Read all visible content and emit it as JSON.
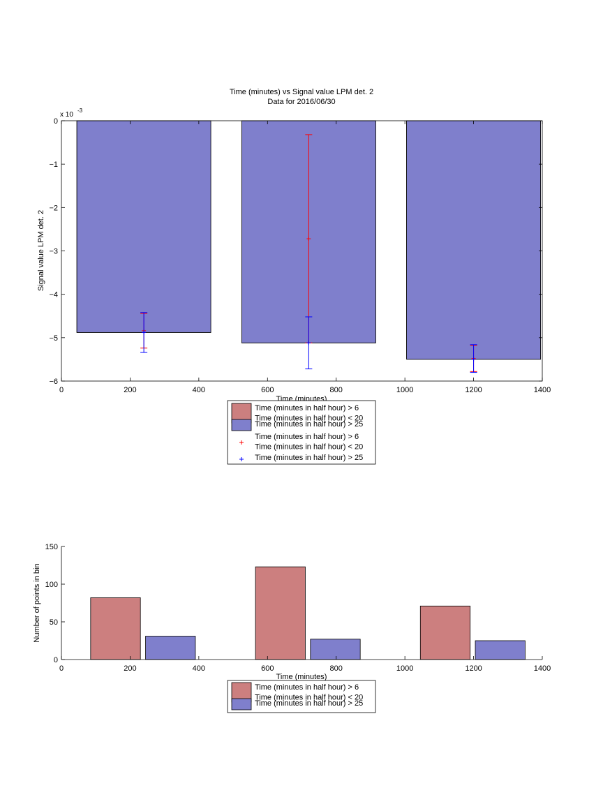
{
  "colors": {
    "red_bar": "#cc7f7f",
    "blue_bar": "#7f7fcc",
    "red_marker": "#ff0000",
    "blue_marker": "#0000ff",
    "axis": "#000000",
    "background": "#ffffff"
  },
  "chart_data": [
    {
      "type": "bar",
      "title": "Time (minutes) vs Signal value LPM det. 2",
      "subtitle": "Data for 2016/06/30",
      "xlabel": "Time (minutes)",
      "ylabel": "Signal value LPM det. 2",
      "y_exponent_label": "x 10",
      "y_exponent_power": "-3",
      "xlim": [
        0,
        1400
      ],
      "ylim": [
        -6,
        0
      ],
      "grid": false,
      "xticks": [
        "0",
        "200",
        "400",
        "600",
        "800",
        "1000",
        "1200",
        "1400"
      ],
      "yticks": [
        "0",
        "−1",
        "−2",
        "−3",
        "−4",
        "−5",
        "−6"
      ],
      "legend_position": "below",
      "legend": [
        {
          "kind": "patch",
          "color": "#cc7f7f",
          "lines": [
            "Time (minutes in half hour) > 6",
            "Time (minutes in half hour) < 20"
          ]
        },
        {
          "kind": "patch",
          "color": "#7f7fcc",
          "lines": [
            "Time (minutes in half hour) > 25"
          ]
        },
        {
          "kind": "marker",
          "color": "#ff0000",
          "lines": [
            "Time (minutes in half hour) > 6",
            "Time (minutes in half hour) < 20"
          ]
        },
        {
          "kind": "marker",
          "color": "#0000ff",
          "lines": [
            "Time (minutes in half hour) > 25"
          ]
        }
      ],
      "series": [
        {
          "color": "#cc7f7f",
          "bars": [
            {
              "x_start": 45,
              "x_end": 435,
              "value": -4.88
            },
            {
              "x_start": 525,
              "x_end": 915,
              "value": -5.12
            },
            {
              "x_start": 1005,
              "x_end": 1395,
              "value": -5.48
            }
          ]
        },
        {
          "color": "#7f7fcc",
          "bars": [
            {
              "x_start": 45,
              "x_end": 435,
              "value": -4.88
            },
            {
              "x_start": 525,
              "x_end": 915,
              "value": -5.12
            },
            {
              "x_start": 1005,
              "x_end": 1395,
              "value": -5.5
            }
          ]
        }
      ],
      "errorbars": [
        {
          "color": "#ff0000",
          "points": [
            {
              "x": 240,
              "y": -4.84,
              "low": -5.24,
              "high": -4.44
            },
            {
              "x": 720,
              "y": -2.72,
              "low": -5.12,
              "high": -0.32
            },
            {
              "x": 1200,
              "y": -5.48,
              "low": -5.78,
              "high": -5.18
            }
          ]
        },
        {
          "color": "#0000ff",
          "points": [
            {
              "x": 240,
              "y": -4.88,
              "low": -5.34,
              "high": -4.42
            },
            {
              "x": 720,
              "y": -5.12,
              "low": -5.72,
              "high": -4.52
            },
            {
              "x": 1200,
              "y": -5.5,
              "low": -5.8,
              "high": -5.16
            }
          ]
        }
      ]
    },
    {
      "type": "bar",
      "xlabel": "Time (minutes)",
      "ylabel": "Number of points in bin",
      "xlim": [
        0,
        1400
      ],
      "ylim": [
        0,
        150
      ],
      "grid": false,
      "xticks": [
        "0",
        "200",
        "400",
        "600",
        "800",
        "1000",
        "1200",
        "1400"
      ],
      "yticks": [
        "0",
        "50",
        "100",
        "150"
      ],
      "legend_position": "below",
      "legend": [
        {
          "kind": "patch",
          "color": "#cc7f7f",
          "lines": [
            "Time (minutes in half hour) > 6",
            "Time (minutes in half hour) < 20"
          ]
        },
        {
          "kind": "patch",
          "color": "#7f7fcc",
          "lines": [
            "Time (minutes in half hour) > 25"
          ]
        }
      ],
      "series": [
        {
          "color": "#cc7f7f",
          "bars": [
            {
              "x_start": 85,
              "x_end": 230,
              "value": 82
            },
            {
              "x_start": 565,
              "x_end": 710,
              "value": 123
            },
            {
              "x_start": 1045,
              "x_end": 1190,
              "value": 71
            }
          ]
        },
        {
          "color": "#7f7fcc",
          "bars": [
            {
              "x_start": 245,
              "x_end": 390,
              "value": 31
            },
            {
              "x_start": 725,
              "x_end": 870,
              "value": 27
            },
            {
              "x_start": 1205,
              "x_end": 1350,
              "value": 25
            }
          ]
        }
      ]
    }
  ]
}
